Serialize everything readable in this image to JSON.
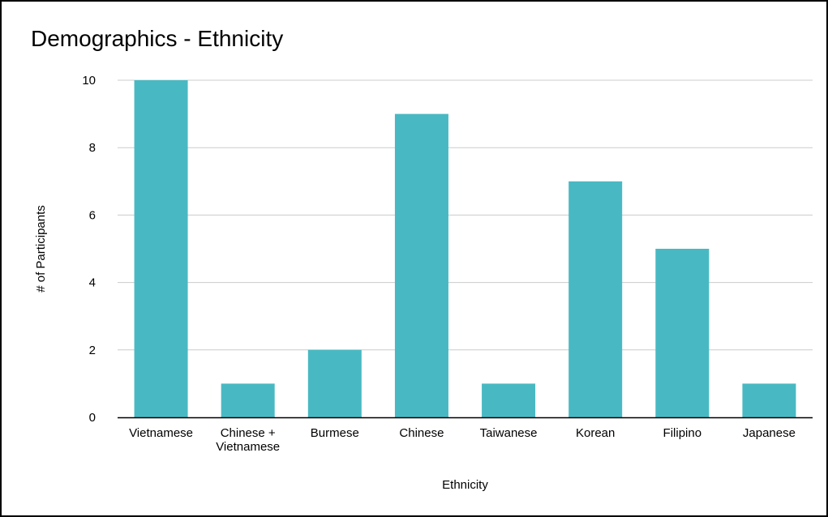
{
  "colors": {
    "bar": "#48b9c2",
    "grid": "#cccccc",
    "axis": "#000000",
    "text": "#000000"
  },
  "chart_data": {
    "type": "bar",
    "title": "Demographics - Ethnicity",
    "xlabel": "Ethnicity",
    "ylabel": "# of Participants",
    "categories": [
      "Vietnamese",
      "Chinese + Vietnamese",
      "Burmese",
      "Chinese",
      "Taiwanese",
      "Korean",
      "Filipino",
      "Japanese"
    ],
    "category_lines": [
      [
        "Vietnamese"
      ],
      [
        "Chinese +",
        "Vietnamese"
      ],
      [
        "Burmese"
      ],
      [
        "Chinese"
      ],
      [
        "Taiwanese"
      ],
      [
        "Korean"
      ],
      [
        "Filipino"
      ],
      [
        "Japanese"
      ]
    ],
    "values": [
      10,
      1,
      2,
      9,
      1,
      7,
      5,
      1
    ],
    "ylim": [
      0,
      10
    ],
    "yticks": [
      0,
      2,
      4,
      6,
      8,
      10
    ],
    "grid": true,
    "legend": "none"
  }
}
